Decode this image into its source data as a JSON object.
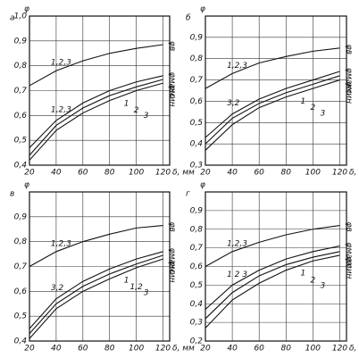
{
  "chart_data": [
    {
      "type": "line",
      "panel": "а",
      "y_label": "φ",
      "x_label": "δ, мм",
      "x": [
        20,
        40,
        60,
        80,
        100,
        120
      ],
      "xlim": [
        20,
        125
      ],
      "ylim": [
        0.4,
        1.0
      ],
      "xticks": [
        20,
        40,
        60,
        80,
        100,
        120
      ],
      "yticks": [
        {
          "value": 0.4,
          "label": "0,4"
        },
        {
          "value": 0.5,
          "label": "0,5"
        },
        {
          "value": 0.6,
          "label": "0,6"
        },
        {
          "value": 0.7,
          "label": "0,7"
        },
        {
          "value": 0.8,
          "label": "0,8"
        },
        {
          "value": 0.9,
          "label": "0,9"
        },
        {
          "value": 1.0,
          "label": "1,0"
        }
      ],
      "grid": true,
      "group_label": "1,2,3",
      "curve_labels": [
        "φв",
        "φмакс",
        "φмин"
      ],
      "series": [
        {
          "name": "1,2,3",
          "color": "#111111",
          "values": [
            0.72,
            0.78,
            0.82,
            0.85,
            0.87,
            0.885
          ]
        },
        {
          "name": "1",
          "color": "#111111",
          "values": [
            0.47,
            0.58,
            0.65,
            0.7,
            0.735,
            0.76
          ]
        },
        {
          "name": "2",
          "color": "#111111",
          "values": [
            0.44,
            0.56,
            0.63,
            0.68,
            0.715,
            0.745
          ]
        },
        {
          "name": "3",
          "color": "#111111",
          "values": [
            0.42,
            0.54,
            0.61,
            0.66,
            0.7,
            0.73
          ]
        }
      ]
    },
    {
      "type": "line",
      "panel": "б",
      "y_label": "φ",
      "x_label": "δ, мм",
      "x": [
        20,
        40,
        60,
        80,
        100,
        120
      ],
      "xlim": [
        20,
        125
      ],
      "ylim": [
        0.3,
        1.0
      ],
      "xticks": [
        20,
        40,
        60,
        80,
        100,
        120
      ],
      "yticks": [
        {
          "value": 0.3,
          "label": "0,3"
        },
        {
          "value": 0.4,
          "label": "0,4"
        },
        {
          "value": 0.5,
          "label": "0,5"
        },
        {
          "value": 0.6,
          "label": "0,6"
        },
        {
          "value": 0.7,
          "label": "0,7"
        },
        {
          "value": 0.8,
          "label": "0,8"
        },
        {
          "value": 0.9,
          "label": "0,9"
        }
      ],
      "grid": true,
      "group_label": "3,2",
      "curve_labels": [
        "φв",
        "φмакс",
        "φмин"
      ],
      "series": [
        {
          "name": "1,2,3",
          "color": "#111111",
          "values": [
            0.66,
            0.73,
            0.78,
            0.81,
            0.835,
            0.85
          ]
        },
        {
          "name": "1",
          "color": "#111111",
          "values": [
            0.43,
            0.54,
            0.61,
            0.66,
            0.7,
            0.74
          ]
        },
        {
          "name": "2",
          "color": "#111111",
          "values": [
            0.4,
            0.52,
            0.59,
            0.64,
            0.68,
            0.72
          ]
        },
        {
          "name": "3",
          "color": "#111111",
          "values": [
            0.37,
            0.49,
            0.57,
            0.62,
            0.66,
            0.7
          ]
        }
      ]
    },
    {
      "type": "line",
      "panel": "в",
      "y_label": "φ",
      "x_label": "δ, мм",
      "x": [
        20,
        40,
        60,
        80,
        100,
        120
      ],
      "xlim": [
        20,
        125
      ],
      "ylim": [
        0.4,
        1.0
      ],
      "xticks": [
        20,
        40,
        60,
        80,
        100,
        120
      ],
      "yticks": [
        {
          "value": 0.4,
          "label": "0,4"
        },
        {
          "value": 0.5,
          "label": "0,5"
        },
        {
          "value": 0.6,
          "label": "0,6"
        },
        {
          "value": 0.7,
          "label": "0,7"
        },
        {
          "value": 0.8,
          "label": "0,8"
        },
        {
          "value": 0.9,
          "label": "0,9"
        }
      ],
      "grid": true,
      "group_label": "3,2",
      "curve_labels": [
        "φв",
        "φмакс",
        "φмин"
      ],
      "series": [
        {
          "name": "1,2,3",
          "color": "#111111",
          "values": [
            0.7,
            0.76,
            0.8,
            0.83,
            0.855,
            0.865
          ]
        },
        {
          "name": "1",
          "color": "#111111",
          "values": [
            0.45,
            0.57,
            0.64,
            0.69,
            0.73,
            0.76
          ]
        },
        {
          "name": "1,2",
          "color": "#111111",
          "values": [
            0.43,
            0.55,
            0.62,
            0.67,
            0.71,
            0.745
          ]
        },
        {
          "name": "3",
          "color": "#111111",
          "values": [
            0.41,
            0.53,
            0.6,
            0.65,
            0.695,
            0.73
          ]
        }
      ]
    },
    {
      "type": "line",
      "panel": "г",
      "y_label": "φ",
      "x_label": "δ, мм",
      "x": [
        20,
        40,
        60,
        80,
        100,
        120
      ],
      "xlim": [
        20,
        125
      ],
      "ylim": [
        0.2,
        1.0
      ],
      "xticks": [
        20,
        40,
        60,
        80,
        100,
        120
      ],
      "yticks": [
        {
          "value": 0.2,
          "label": "0,2"
        },
        {
          "value": 0.3,
          "label": "0,3"
        },
        {
          "value": 0.4,
          "label": "0,4"
        },
        {
          "value": 0.5,
          "label": "0,5"
        },
        {
          "value": 0.6,
          "label": "0,6"
        },
        {
          "value": 0.7,
          "label": "0,7"
        },
        {
          "value": 0.8,
          "label": "0,8"
        },
        {
          "value": 0.9,
          "label": "0,9"
        }
      ],
      "grid": true,
      "group_label": "1 2 3",
      "curve_labels": [
        "φв",
        "φмакс",
        "φмин"
      ],
      "series": [
        {
          "name": "1,2,3",
          "color": "#111111",
          "values": [
            0.6,
            0.68,
            0.73,
            0.77,
            0.8,
            0.82
          ]
        },
        {
          "name": "1",
          "color": "#111111",
          "values": [
            0.37,
            0.5,
            0.58,
            0.64,
            0.68,
            0.71
          ]
        },
        {
          "name": "2",
          "color": "#111111",
          "values": [
            0.32,
            0.46,
            0.55,
            0.61,
            0.65,
            0.68
          ]
        },
        {
          "name": "3",
          "color": "#111111",
          "values": [
            0.27,
            0.42,
            0.51,
            0.58,
            0.63,
            0.66
          ]
        }
      ]
    }
  ]
}
